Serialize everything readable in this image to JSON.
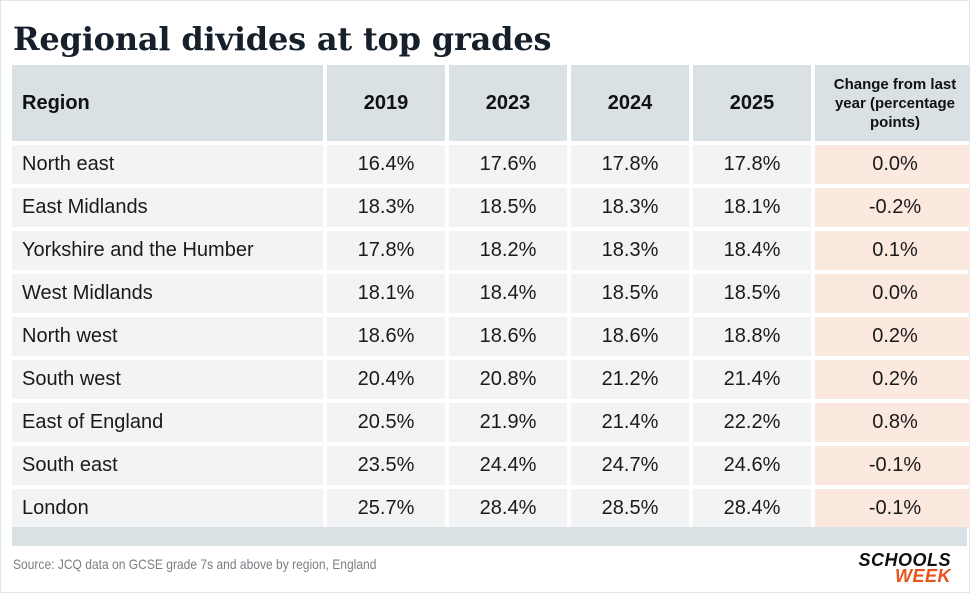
{
  "title": "Regional divides at top grades",
  "chart_data": {
    "type": "table",
    "columns": [
      "Region",
      "2019",
      "2023",
      "2024",
      "2025",
      "Change from last year (percentage points)"
    ],
    "rows": [
      [
        "North east",
        "16.4%",
        "17.6%",
        "17.8%",
        "17.8%",
        "0.0%"
      ],
      [
        "East Midlands",
        "18.3%",
        "18.5%",
        "18.3%",
        "18.1%",
        "-0.2%"
      ],
      [
        "Yorkshire and the Humber",
        "17.8%",
        "18.2%",
        "18.3%",
        "18.4%",
        "0.1%"
      ],
      [
        "West Midlands",
        "18.1%",
        "18.4%",
        "18.5%",
        "18.5%",
        "0.0%"
      ],
      [
        "North west",
        "18.6%",
        "18.6%",
        "18.6%",
        "18.8%",
        "0.2%"
      ],
      [
        "South west",
        "20.4%",
        "20.8%",
        "21.2%",
        "21.4%",
        "0.2%"
      ],
      [
        "East of England",
        "20.5%",
        "21.9%",
        "21.4%",
        "22.2%",
        "0.8%"
      ],
      [
        "South east",
        "23.5%",
        "24.4%",
        "24.7%",
        "24.6%",
        "-0.1%"
      ],
      [
        "London",
        "25.7%",
        "28.4%",
        "28.5%",
        "28.4%",
        "-0.1%"
      ]
    ]
  },
  "source": "Source: JCQ data on GCSE grade 7s and above by region, England",
  "logo": {
    "line1": "SCHOOLS",
    "line2": "WEEK"
  },
  "colors": {
    "header_bg": "#d9e1e5",
    "cell_bg": "#f1f3f4",
    "change_bg": "#fbe9df",
    "logo_accent": "#e8541c"
  }
}
